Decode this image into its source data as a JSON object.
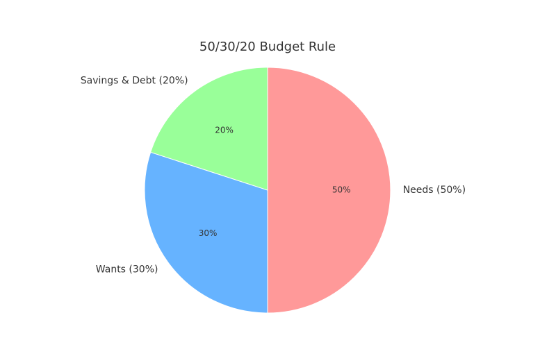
{
  "chart_data": {
    "type": "pie",
    "title": "50/30/20 Budget Rule",
    "start_angle_deg": 90,
    "direction": "clockwise",
    "slices": [
      {
        "label": "Needs (50%)",
        "value": 50,
        "pct_label": "50%",
        "color": "#ff9999"
      },
      {
        "label": "Wants (30%)",
        "value": 30,
        "pct_label": "30%",
        "color": "#66b3ff"
      },
      {
        "label": "Savings & Debt (20%)",
        "value": 20,
        "pct_label": "20%",
        "color": "#99ff99"
      }
    ]
  }
}
